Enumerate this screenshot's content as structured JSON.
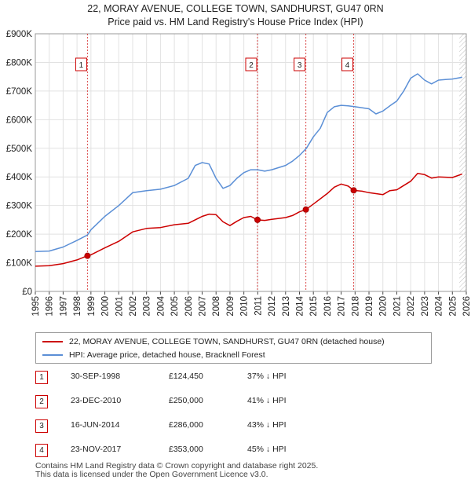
{
  "title_line1": "22, MORAY AVENUE, COLLEGE TOWN, SANDHURST, GU47 0RN",
  "title_line2": "Price paid vs. HM Land Registry's House Price Index (HPI)",
  "chart_data": {
    "type": "line",
    "title": "22, MORAY AVENUE, COLLEGE TOWN, SANDHURST, GU47 0RN — Price paid vs. HM Land Registry's House Price Index (HPI)",
    "xlim": [
      1995,
      2026
    ],
    "ylim": [
      0,
      900000
    ],
    "y_ticks": [
      {
        "value": 0,
        "label": "£0"
      },
      {
        "value": 100000,
        "label": "£100K"
      },
      {
        "value": 200000,
        "label": "£200K"
      },
      {
        "value": 300000,
        "label": "£300K"
      },
      {
        "value": 400000,
        "label": "£400K"
      },
      {
        "value": 500000,
        "label": "£500K"
      },
      {
        "value": 600000,
        "label": "£600K"
      },
      {
        "value": 700000,
        "label": "£700K"
      },
      {
        "value": 800000,
        "label": "£800K"
      },
      {
        "value": 900000,
        "label": "£900K"
      }
    ],
    "x_ticks": [
      "1995",
      "1996",
      "1997",
      "1998",
      "1999",
      "2000",
      "2001",
      "2002",
      "2003",
      "2004",
      "2005",
      "2006",
      "2007",
      "2008",
      "2009",
      "2010",
      "2011",
      "2012",
      "2013",
      "2014",
      "2015",
      "2016",
      "2017",
      "2018",
      "2019",
      "2020",
      "2021",
      "2022",
      "2023",
      "2024",
      "2025",
      "2026"
    ],
    "grid": true,
    "series": [
      {
        "name": "22, MORAY AVENUE, COLLEGE TOWN, SANDHURST, GU47 0RN (detached house)",
        "color": "#cc0000",
        "x": [
          1995.0,
          1996.0,
          1997.0,
          1998.0,
          1998.75,
          1999.0,
          2000.0,
          2001.0,
          2002.0,
          2003.0,
          2004.0,
          2005.0,
          2006.0,
          2007.0,
          2007.5,
          2008.0,
          2008.5,
          2009.0,
          2009.5,
          2010.0,
          2010.5,
          2010.98,
          2011.5,
          2012.0,
          2013.0,
          2013.5,
          2014.0,
          2014.46,
          2015.0,
          2016.0,
          2016.5,
          2017.0,
          2017.5,
          2017.9,
          2018.5,
          2019.0,
          2020.0,
          2020.5,
          2021.0,
          2022.0,
          2022.5,
          2023.0,
          2023.5,
          2024.0,
          2025.0,
          2025.7
        ],
        "values": [
          88000,
          90000,
          97000,
          110000,
          124450,
          128000,
          152000,
          175000,
          208000,
          220000,
          223000,
          233000,
          238000,
          262000,
          270000,
          268000,
          243000,
          230000,
          245000,
          258000,
          262000,
          250000,
          248000,
          252000,
          258000,
          265000,
          278000,
          286000,
          305000,
          342000,
          364000,
          375000,
          368000,
          353000,
          350000,
          345000,
          338000,
          352000,
          355000,
          385000,
          412000,
          408000,
          396000,
          400000,
          398000,
          410000
        ]
      },
      {
        "name": "HPI: Average price, detached house, Bracknell Forest",
        "color": "#5b8fd6",
        "x": [
          1995.0,
          1996.0,
          1997.0,
          1998.0,
          1998.75,
          1999.0,
          2000.0,
          2001.0,
          2002.0,
          2003.0,
          2004.0,
          2005.0,
          2006.0,
          2006.5,
          2007.0,
          2007.5,
          2008.0,
          2008.5,
          2009.0,
          2009.5,
          2010.0,
          2010.5,
          2011.0,
          2011.5,
          2012.0,
          2013.0,
          2013.5,
          2014.0,
          2014.5,
          2015.0,
          2015.5,
          2016.0,
          2016.5,
          2017.0,
          2017.5,
          2018.0,
          2019.0,
          2019.5,
          2020.0,
          2020.5,
          2021.0,
          2021.5,
          2022.0,
          2022.5,
          2023.0,
          2023.5,
          2024.0,
          2024.5,
          2025.0,
          2025.7
        ],
        "values": [
          139000,
          141000,
          155000,
          178000,
          197000,
          215000,
          262000,
          300000,
          345000,
          352000,
          357000,
          370000,
          395000,
          440000,
          450000,
          445000,
          395000,
          360000,
          370000,
          395000,
          415000,
          425000,
          425000,
          420000,
          425000,
          440000,
          455000,
          475000,
          500000,
          540000,
          570000,
          625000,
          645000,
          650000,
          648000,
          645000,
          638000,
          620000,
          630000,
          648000,
          665000,
          700000,
          745000,
          760000,
          738000,
          725000,
          738000,
          740000,
          742000,
          748000
        ]
      }
    ],
    "sales": [
      {
        "label": "1",
        "x": 1998.75,
        "y": 124450
      },
      {
        "label": "2",
        "x": 2010.98,
        "y": 250000
      },
      {
        "label": "3",
        "x": 2014.46,
        "y": 286000
      },
      {
        "label": "4",
        "x": 2017.9,
        "y": 353000
      }
    ]
  },
  "legend": {
    "property_label": "22, MORAY AVENUE, COLLEGE TOWN, SANDHURST, GU47 0RN (detached house)",
    "property_color": "#cc0000",
    "hpi_label": "HPI: Average price, detached house, Bracknell Forest",
    "hpi_color": "#5b8fd6"
  },
  "sales_table": [
    {
      "num": "1",
      "date": "30-SEP-1998",
      "price": "£124,450",
      "hpi": "37% ↓ HPI"
    },
    {
      "num": "2",
      "date": "23-DEC-2010",
      "price": "£250,000",
      "hpi": "41% ↓ HPI"
    },
    {
      "num": "3",
      "date": "16-JUN-2014",
      "price": "£286,000",
      "hpi": "43% ↓ HPI"
    },
    {
      "num": "4",
      "date": "23-NOV-2017",
      "price": "£353,000",
      "hpi": "45% ↓ HPI"
    }
  ],
  "footer_line1": "Contains HM Land Registry data © Crown copyright and database right 2025.",
  "footer_line2": "This data is licensed under the Open Government Licence v3.0."
}
